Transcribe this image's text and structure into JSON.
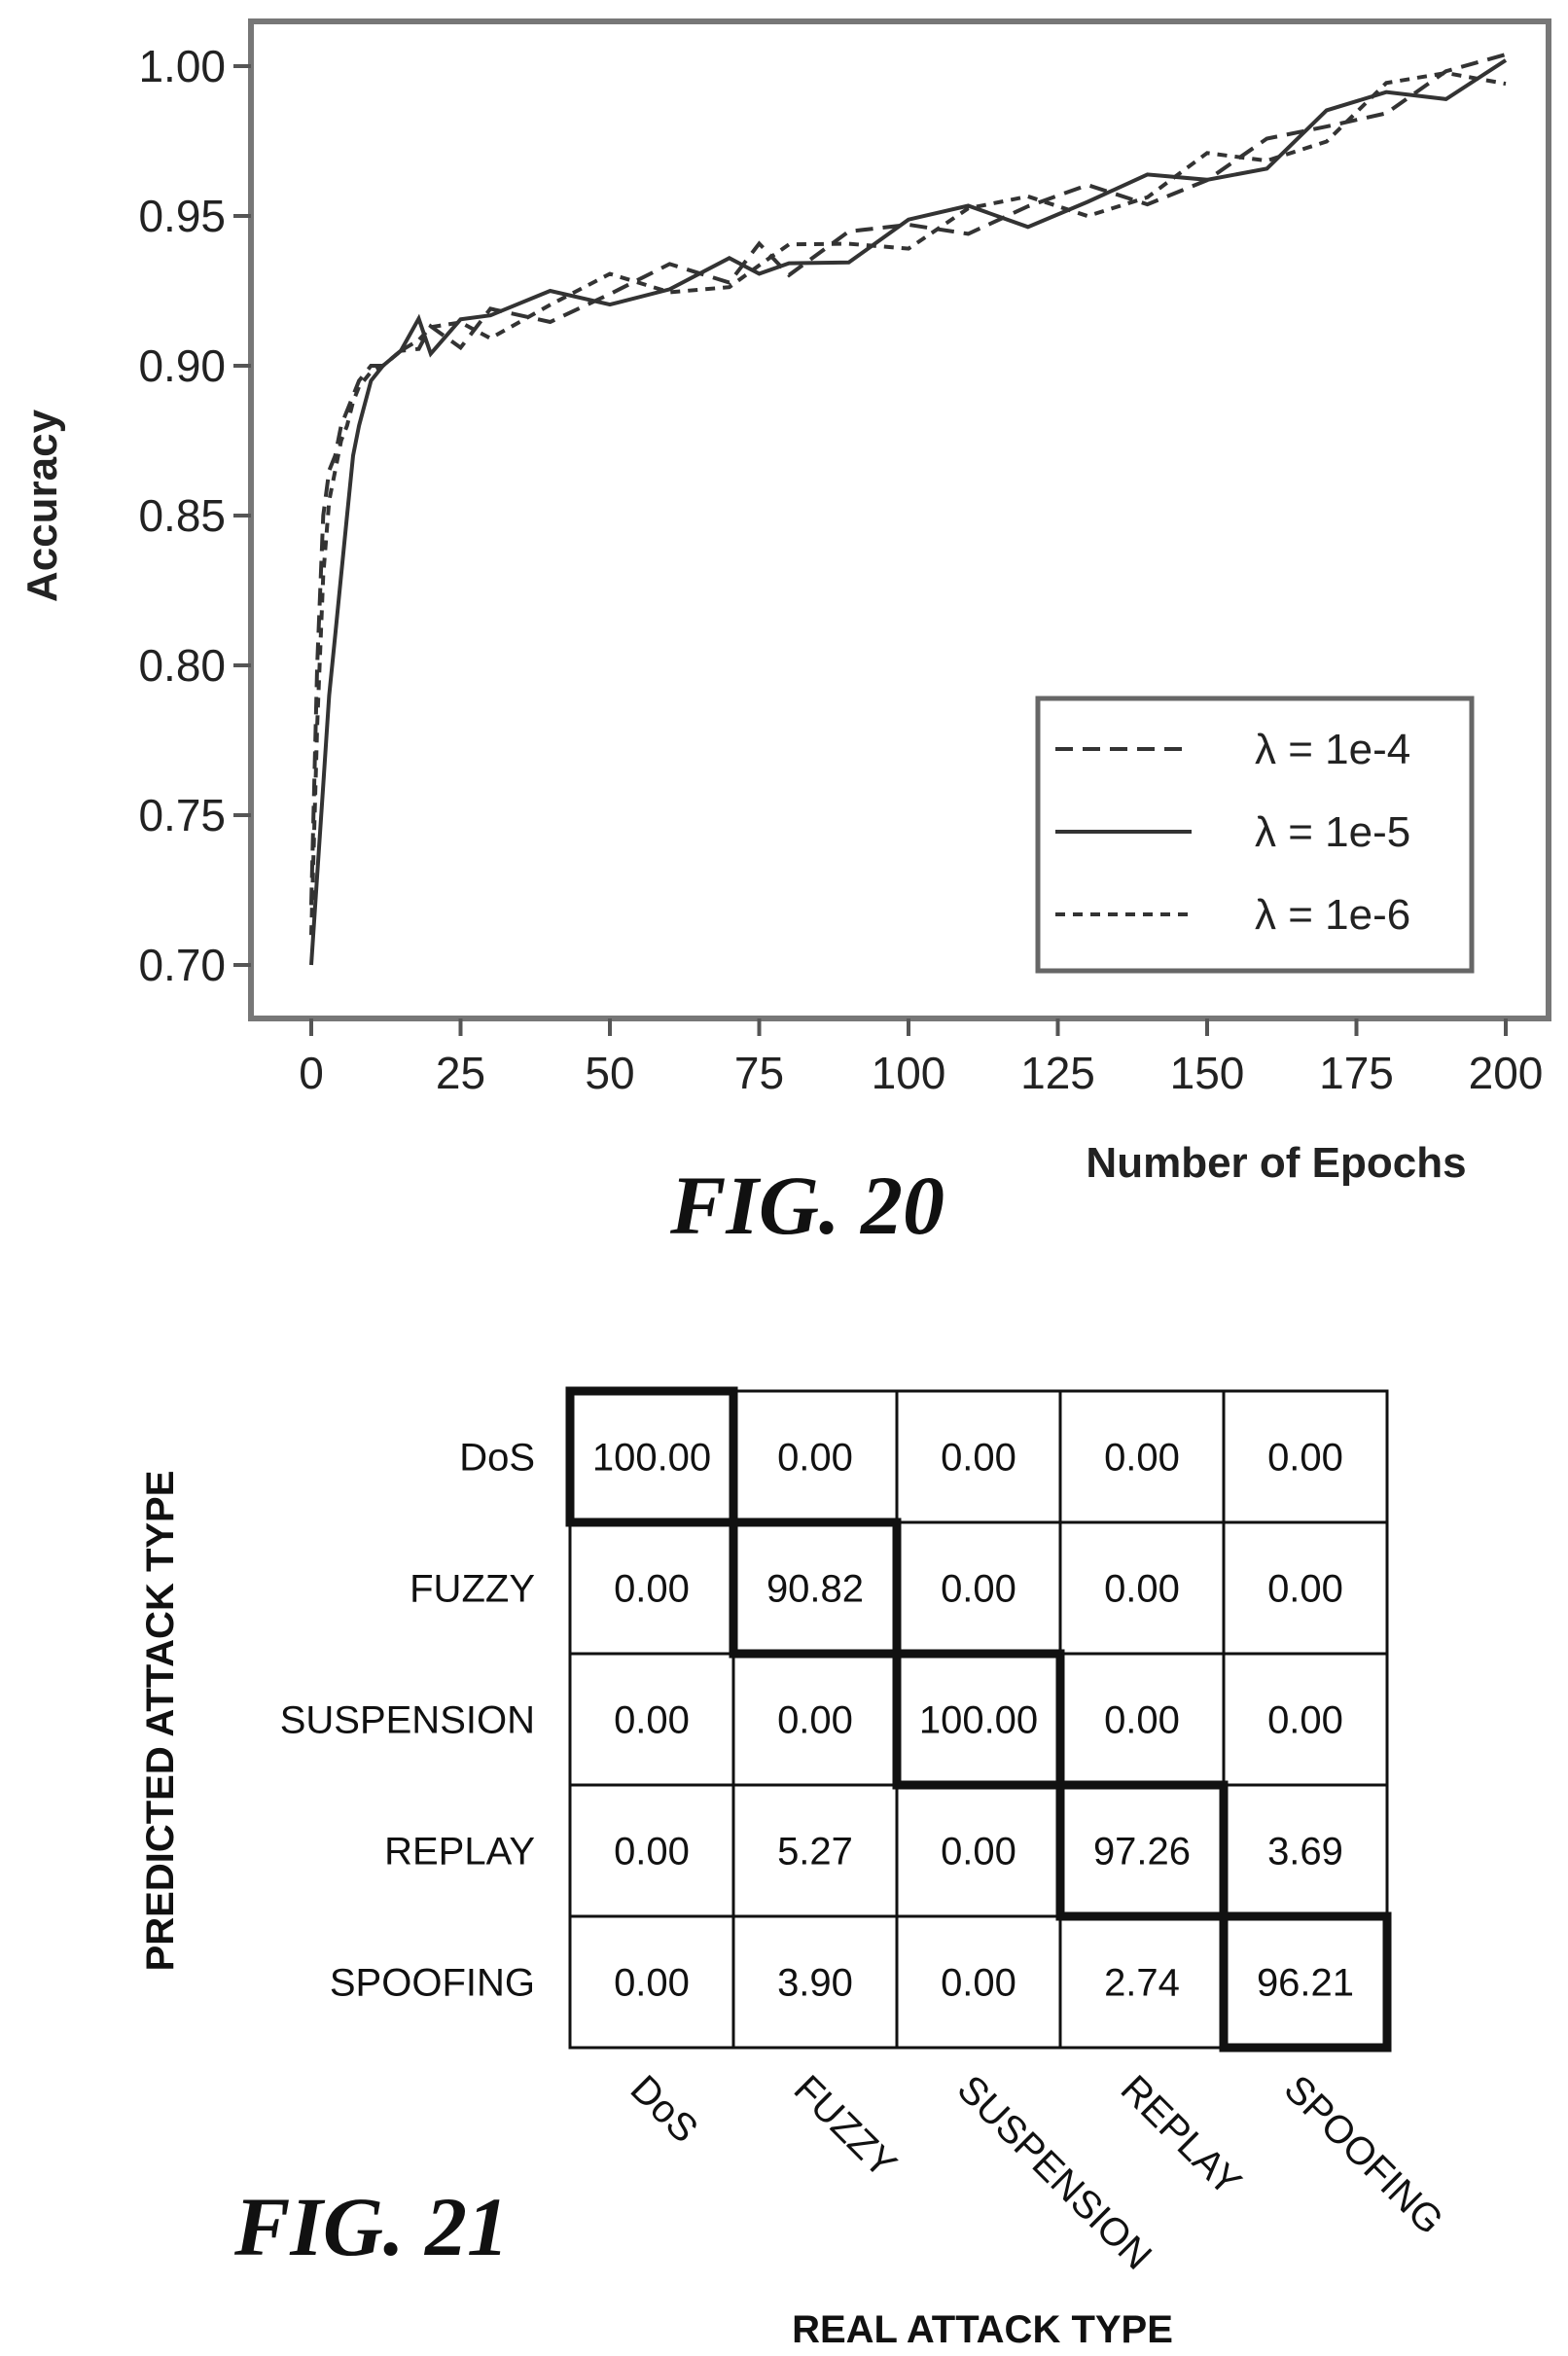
{
  "chart_data": [
    {
      "type": "line",
      "caption": "FIG. 20",
      "xlabel": "Number of Epochs",
      "ylabel": "Accuracy",
      "xlim": [
        -5,
        210
      ],
      "ylim": [
        0.68,
        1.015
      ],
      "xticks": [
        "0",
        "25",
        "50",
        "75",
        "100",
        "125",
        "150",
        "175",
        "200"
      ],
      "yticks": [
        "0.70",
        "0.75",
        "0.80",
        "0.85",
        "0.90",
        "0.95",
        "1.00"
      ],
      "grid": false,
      "legend_position": "bottom-right",
      "x": [
        0,
        1,
        2,
        3,
        4,
        5,
        6,
        7,
        8,
        10,
        12,
        15,
        18,
        20,
        25,
        30,
        40,
        50,
        60,
        70,
        75,
        80,
        90,
        100,
        110,
        120,
        130,
        140,
        150,
        160,
        170,
        180,
        190,
        200
      ],
      "series": [
        {
          "name": "λ = 1e-4",
          "dash": "long",
          "values": [
            0.72,
            0.8,
            0.85,
            0.865,
            0.87,
            0.88,
            0.885,
            0.89,
            0.895,
            0.9,
            0.9,
            0.905,
            0.91,
            0.91,
            0.912,
            0.915,
            0.92,
            0.925,
            0.928,
            0.93,
            0.935,
            0.935,
            0.94,
            0.945,
            0.95,
            0.952,
            0.955,
            0.958,
            0.965,
            0.97,
            0.98,
            0.99,
            0.995,
            1.0
          ]
        },
        {
          "name": "λ = 1e-5",
          "dash": "solid",
          "values": [
            0.7,
            0.73,
            0.76,
            0.79,
            0.81,
            0.83,
            0.85,
            0.87,
            0.88,
            0.895,
            0.9,
            0.905,
            0.91,
            0.91,
            0.912,
            0.915,
            0.92,
            0.925,
            0.928,
            0.93,
            0.935,
            0.935,
            0.94,
            0.945,
            0.95,
            0.952,
            0.955,
            0.958,
            0.965,
            0.97,
            0.98,
            0.99,
            0.995,
            1.0
          ]
        },
        {
          "name": "λ = 1e-6",
          "dash": "short",
          "values": [
            0.71,
            0.78,
            0.83,
            0.855,
            0.865,
            0.875,
            0.88,
            0.888,
            0.893,
            0.898,
            0.9,
            0.905,
            0.91,
            0.91,
            0.912,
            0.915,
            0.92,
            0.925,
            0.928,
            0.93,
            0.935,
            0.935,
            0.94,
            0.945,
            0.95,
            0.952,
            0.955,
            0.958,
            0.965,
            0.97,
            0.98,
            0.99,
            0.995,
            1.0
          ]
        }
      ]
    },
    {
      "type": "heatmap",
      "caption": "FIG. 21",
      "xlabel": "REAL ATTACK TYPE",
      "ylabel": "PREDICTED ATTACK TYPE",
      "rows": [
        "DoS",
        "FUZZY",
        "SUSPENSION",
        "REPLAY",
        "SPOOFING"
      ],
      "cols": [
        "DoS",
        "FUZZY",
        "SUSPENSION",
        "REPLAY",
        "SPOOFING"
      ],
      "values": [
        [
          "100.00",
          "0.00",
          "0.00",
          "0.00",
          "0.00"
        ],
        [
          "0.00",
          "90.82",
          "0.00",
          "0.00",
          "0.00"
        ],
        [
          "0.00",
          "0.00",
          "100.00",
          "0.00",
          "0.00"
        ],
        [
          "0.00",
          "5.27",
          "0.00",
          "97.26",
          "3.69"
        ],
        [
          "0.00",
          "3.90",
          "0.00",
          "2.74",
          "96.21"
        ]
      ],
      "highlight": "diagonal"
    }
  ]
}
